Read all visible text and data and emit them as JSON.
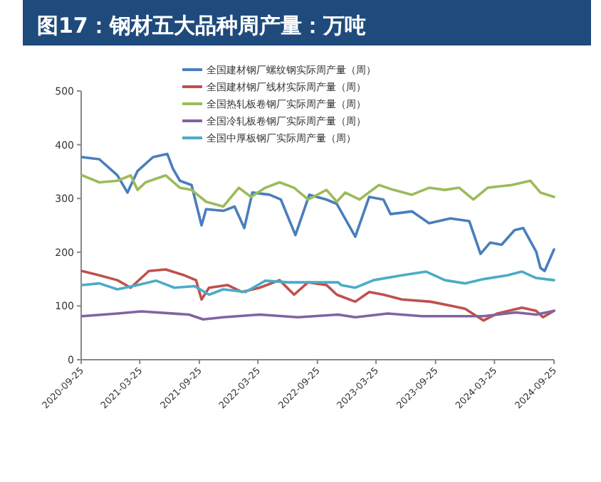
{
  "chart_data": {
    "type": "line",
    "title": "图17：钢材五大品种周产量：万吨",
    "legend": "top",
    "line_style": "solid",
    "xlim": [
      "2020-09-25",
      "2024-09-25"
    ],
    "xticks": [
      "2020-09-25",
      "2021-03-25",
      "2021-09-25",
      "2022-03-25",
      "2022-09-25",
      "2023-03-25",
      "2023-09-25",
      "2024-03-25",
      "2024-09-25"
    ],
    "ylim": [
      0,
      500
    ],
    "yticks": [
      0,
      100,
      200,
      300,
      400,
      500
    ],
    "series": [
      {
        "name": "全国建材钢厂螺纹钢实际周产量（周）",
        "color": "#4a7ebb",
        "x": [
          "2020-09-28",
          "2020-11-20",
          "2021-01-15",
          "2021-02-15",
          "2021-03-18",
          "2021-05-05",
          "2021-06-18",
          "2021-07-05",
          "2021-07-27",
          "2021-09-01",
          "2021-10-02",
          "2021-10-16",
          "2021-12-08",
          "2022-01-12",
          "2022-02-11",
          "2022-03-08",
          "2022-04-30",
          "2022-06-04",
          "2022-07-19",
          "2022-08-31",
          "2022-10-23",
          "2022-11-24",
          "2023-01-20",
          "2023-03-04",
          "2023-04-17",
          "2023-05-09",
          "2023-07-14",
          "2023-09-05",
          "2023-11-10",
          "2024-01-07",
          "2024-02-11",
          "2024-03-12",
          "2024-04-16",
          "2024-05-26",
          "2024-06-22",
          "2024-08-01",
          "2024-08-14",
          "2024-08-27",
          "2024-09-25"
        ],
        "values": [
          377,
          373,
          343,
          311,
          351,
          377,
          383,
          356,
          333,
          325,
          250,
          280,
          277,
          285,
          245,
          311,
          307,
          298,
          232,
          307,
          298,
          290,
          229,
          303,
          298,
          271,
          276,
          254,
          263,
          258,
          197,
          218,
          214,
          241,
          245,
          201,
          171,
          165,
          205
        ]
      },
      {
        "name": "全国建材钢厂线材实际周产量（周）",
        "color": "#c0504d",
        "x": [
          "2020-09-28",
          "2020-11-20",
          "2021-01-15",
          "2021-02-25",
          "2021-04-22",
          "2021-06-13",
          "2021-08-10",
          "2021-09-15",
          "2021-10-02",
          "2021-10-25",
          "2021-12-21",
          "2022-02-03",
          "2022-03-30",
          "2022-05-31",
          "2022-07-15",
          "2022-08-27",
          "2022-10-23",
          "2022-11-24",
          "2023-01-20",
          "2023-03-04",
          "2023-04-17",
          "2023-06-13",
          "2023-09-10",
          "2023-11-24",
          "2023-12-25",
          "2024-02-20",
          "2024-04-03",
          "2024-06-18",
          "2024-08-01",
          "2024-08-22",
          "2024-09-25"
        ],
        "values": [
          165,
          157,
          148,
          134,
          165,
          168,
          157,
          148,
          112,
          134,
          139,
          126,
          134,
          148,
          121,
          144,
          139,
          121,
          108,
          126,
          121,
          112,
          108,
          99,
          95,
          73,
          86,
          97,
          91,
          79,
          91
        ]
      },
      {
        "name": "全国热轧板卷钢厂实际周产量（周）",
        "color": "#9bbb59",
        "x": [
          "2020-09-28",
          "2020-11-20",
          "2021-01-15",
          "2021-02-25",
          "2021-03-18",
          "2021-04-12",
          "2021-06-13",
          "2021-07-27",
          "2021-09-01",
          "2021-10-16",
          "2021-12-08",
          "2022-01-25",
          "2022-03-04",
          "2022-04-17",
          "2022-05-31",
          "2022-07-15",
          "2022-08-27",
          "2022-10-23",
          "2022-11-24",
          "2022-12-20",
          "2023-02-02",
          "2023-04-03",
          "2023-05-18",
          "2023-07-14",
          "2023-09-05",
          "2023-10-24",
          "2023-12-07",
          "2024-01-20",
          "2024-03-04",
          "2024-05-17",
          "2024-07-14",
          "2024-08-14",
          "2024-09-25"
        ],
        "values": [
          343,
          330,
          333,
          343,
          316,
          330,
          343,
          320,
          316,
          294,
          285,
          320,
          303,
          320,
          330,
          320,
          298,
          316,
          294,
          311,
          298,
          325,
          316,
          307,
          320,
          316,
          320,
          298,
          320,
          325,
          333,
          311,
          303
        ]
      },
      {
        "name": "全国冷轧板卷钢厂实际周产量（周）",
        "color": "#8064a2",
        "x": [
          "2020-09-28",
          "2021-01-15",
          "2021-03-30",
          "2021-08-24",
          "2021-10-07",
          "2021-12-08",
          "2022-03-30",
          "2022-07-27",
          "2022-11-28",
          "2023-01-20",
          "2023-04-30",
          "2023-08-14",
          "2024-02-20",
          "2024-05-30",
          "2024-08-01",
          "2024-09-25"
        ],
        "values": [
          81,
          86,
          90,
          84,
          75,
          79,
          84,
          79,
          84,
          79,
          86,
          81,
          81,
          88,
          84,
          91
        ]
      },
      {
        "name": "全国中厚板钢厂实际周产量（周）",
        "color": "#4bacc6",
        "x": [
          "2020-09-28",
          "2020-11-20",
          "2021-01-15",
          "2021-03-18",
          "2021-05-15",
          "2021-07-10",
          "2021-09-10",
          "2021-10-25",
          "2021-12-08",
          "2022-02-15",
          "2022-04-17",
          "2022-06-26",
          "2022-09-23",
          "2022-11-28",
          "2022-12-07",
          "2023-01-20",
          "2023-03-17",
          "2023-06-13",
          "2023-08-27",
          "2023-10-24",
          "2023-12-25",
          "2024-02-20",
          "2024-05-04",
          "2024-06-18",
          "2024-08-01",
          "2024-09-25"
        ],
        "values": [
          139,
          142,
          131,
          139,
          147,
          134,
          137,
          121,
          131,
          126,
          147,
          144,
          144,
          144,
          139,
          134,
          148,
          157,
          164,
          148,
          142,
          150,
          157,
          164,
          152,
          148
        ]
      }
    ]
  }
}
